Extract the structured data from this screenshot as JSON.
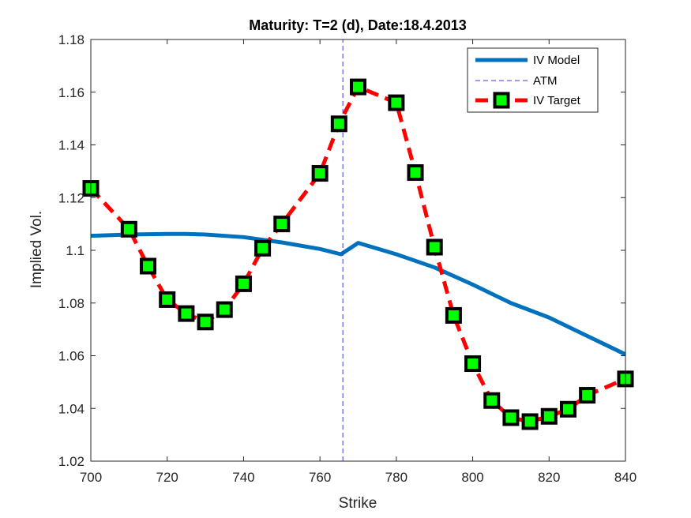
{
  "chart_data": {
    "type": "line",
    "title": "Maturity: T=2 (d), Date:18.4.2013",
    "xlabel": "Strike",
    "ylabel": "Implied Vol.",
    "xlim": [
      700,
      840
    ],
    "ylim": [
      1.02,
      1.18
    ],
    "xticks": [
      700,
      720,
      740,
      760,
      780,
      800,
      820,
      840
    ],
    "yticks": [
      1.02,
      1.04,
      1.06,
      1.08,
      1.1,
      1.12,
      1.14,
      1.16,
      1.18
    ],
    "xtick_labels": [
      "700",
      "720",
      "740",
      "760",
      "780",
      "800",
      "820",
      "840"
    ],
    "ytick_labels": [
      "1.02",
      "1.04",
      "1.06",
      "1.08",
      "1.1",
      "1.12",
      "1.14",
      "1.16",
      "1.18"
    ],
    "grid": false,
    "legend_position": "top-right",
    "series": [
      {
        "name": "IV Model",
        "style": "solid",
        "color": "#0072BD",
        "x": [
          700,
          710,
          720,
          725,
          730,
          740,
          750,
          760,
          765.5,
          770,
          780,
          790,
          800,
          810,
          820,
          830,
          840
        ],
        "y": [
          1.1055,
          1.106,
          1.1062,
          1.1062,
          1.106,
          1.105,
          1.103,
          1.1005,
          1.0985,
          1.1028,
          1.0985,
          1.0935,
          1.087,
          1.08,
          1.0745,
          1.0675,
          1.0605
        ]
      },
      {
        "name": "ATM",
        "style": "dashed",
        "color": "#3b3bcf",
        "x": [
          766,
          766
        ],
        "y": [
          1.02,
          1.18
        ]
      },
      {
        "name": "IV Target",
        "style": "dashed-markers",
        "color": "#ff0000",
        "marker_edge": "#000000",
        "marker_face": "#00ff00",
        "x": [
          700,
          710,
          715,
          720,
          725,
          730,
          735,
          740,
          745,
          750,
          760,
          765,
          770,
          780,
          785,
          790,
          795,
          800,
          805,
          810,
          815,
          820,
          825,
          830,
          840
        ],
        "y": [
          1.1235,
          1.108,
          1.094,
          1.0813,
          1.076,
          1.0728,
          1.0775,
          1.0873,
          1.1008,
          1.11,
          1.1292,
          1.148,
          1.162,
          1.156,
          1.1295,
          1.1012,
          1.0753,
          1.057,
          1.043,
          1.0365,
          1.035,
          1.037,
          1.0397,
          1.045,
          1.0512
        ]
      }
    ]
  }
}
